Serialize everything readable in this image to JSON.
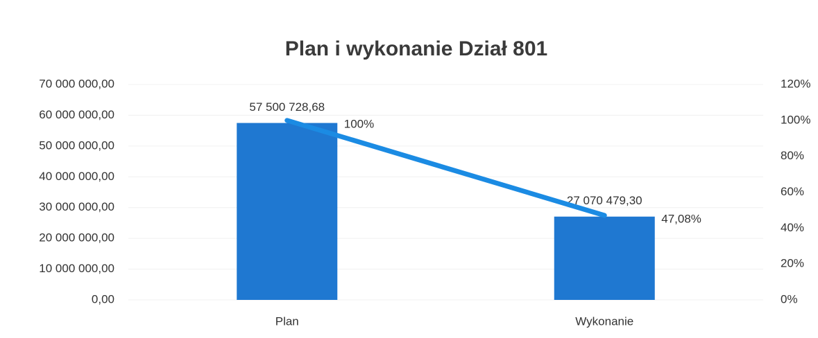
{
  "chart_data": {
    "type": "bar",
    "title": "Plan i wykonanie Dział 801",
    "categories": [
      "Plan",
      "Wykonanie"
    ],
    "series": [
      {
        "type": "bar",
        "color": "#1f78d1",
        "values": [
          57500728.68,
          27070479.3
        ],
        "value_labels": [
          "57 500 728,68",
          "27 070 479,30"
        ]
      },
      {
        "type": "line",
        "axis": "y2",
        "color": "#1b8be3",
        "values": [
          100,
          47.08
        ],
        "value_labels": [
          "100%",
          "47,08%"
        ]
      }
    ],
    "ylim": [
      0,
      70000000
    ],
    "yticks": [
      {
        "value": 0,
        "label": "0,00"
      },
      {
        "value": 10000000,
        "label": "10 000 000,00"
      },
      {
        "value": 20000000,
        "label": "20 000 000,00"
      },
      {
        "value": 30000000,
        "label": "30 000 000,00"
      },
      {
        "value": 40000000,
        "label": "40 000 000,00"
      },
      {
        "value": 50000000,
        "label": "50 000 000,00"
      },
      {
        "value": 60000000,
        "label": "60 000 000,00"
      },
      {
        "value": 70000000,
        "label": "70 000 000,00"
      }
    ],
    "y2lim": [
      0,
      120
    ],
    "y2ticks": [
      {
        "value": 0,
        "label": "0%"
      },
      {
        "value": 20,
        "label": "20%"
      },
      {
        "value": 40,
        "label": "40%"
      },
      {
        "value": 60,
        "label": "60%"
      },
      {
        "value": 80,
        "label": "80%"
      },
      {
        "value": 100,
        "label": "100%"
      },
      {
        "value": 120,
        "label": "120%"
      }
    ]
  }
}
